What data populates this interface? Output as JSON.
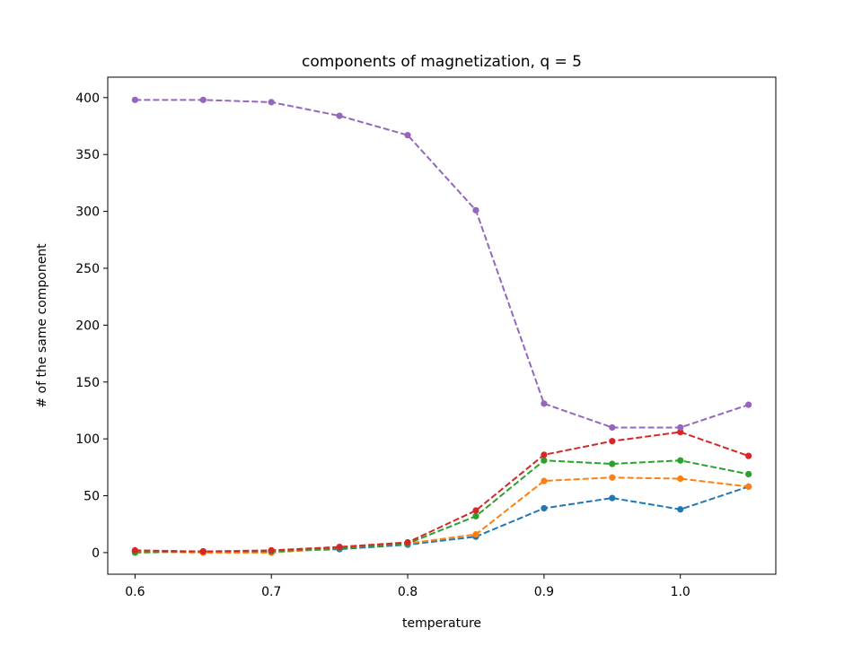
{
  "chart_data": {
    "type": "line",
    "title": "components of magnetization, q = 5",
    "xlabel": "temperature",
    "ylabel": "# of the same component",
    "xlim": [
      0.58,
      1.07
    ],
    "ylim": [
      -19,
      418
    ],
    "x_ticks": [
      "0.6",
      "0.7",
      "0.8",
      "0.9",
      "1.0"
    ],
    "x_tick_values": [
      0.6,
      0.7,
      0.8,
      0.9,
      1.0
    ],
    "y_ticks": [
      "0",
      "50",
      "100",
      "150",
      "200",
      "250",
      "300",
      "350",
      "400"
    ],
    "y_tick_values": [
      0,
      50,
      100,
      150,
      200,
      250,
      300,
      350,
      400
    ],
    "grid": false,
    "legend": "none",
    "line_style": "dashed",
    "marker": "circle",
    "x": [
      0.6,
      0.65,
      0.7,
      0.75,
      0.8,
      0.85,
      0.9,
      0.95,
      1.0,
      1.05
    ],
    "series": [
      {
        "color": "#1f77b4",
        "values": [
          1,
          1,
          1,
          3,
          7,
          14,
          39,
          48,
          38,
          58
        ]
      },
      {
        "color": "#ff7f0e",
        "values": [
          1,
          0,
          0,
          4,
          8,
          16,
          63,
          66,
          65,
          58
        ]
      },
      {
        "color": "#2ca02c",
        "values": [
          0,
          1,
          1,
          4,
          8,
          32,
          81,
          78,
          81,
          69
        ]
      },
      {
        "color": "#d62728",
        "values": [
          2,
          1,
          2,
          5,
          9,
          37,
          86,
          98,
          106,
          85
        ]
      },
      {
        "color": "#9467bd",
        "values": [
          398,
          398,
          396,
          384,
          367,
          301,
          131,
          110,
          110,
          130
        ]
      }
    ]
  }
}
